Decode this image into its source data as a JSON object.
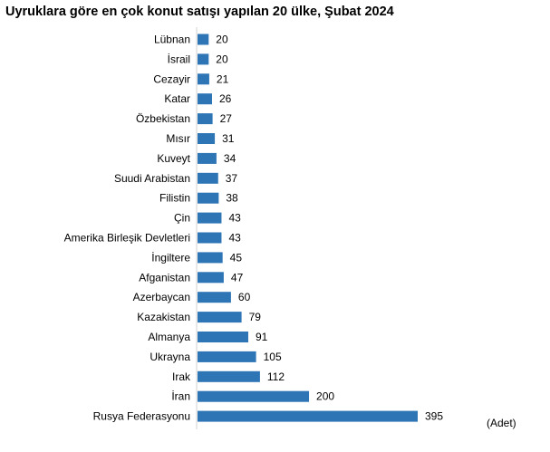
{
  "chart_data": {
    "type": "bar",
    "orientation": "horizontal",
    "title": "Uyruklara göre en çok konut satışı yapılan 20 ülke, Şubat 2024",
    "unit_label": "(Adet)",
    "categories": [
      "Lübnan",
      "İsrail",
      "Cezayir",
      "Katar",
      "Özbekistan",
      "Mısır",
      "Kuveyt",
      "Suudi Arabistan",
      "Filistin",
      "Çin",
      "Amerika Birleşik Devletleri",
      "İngiltere",
      "Afganistan",
      "Azerbaycan",
      "Kazakistan",
      "Almanya",
      "Ukrayna",
      "Irak",
      "İran",
      "Rusya Federasyonu"
    ],
    "values": [
      20,
      20,
      21,
      26,
      27,
      31,
      34,
      37,
      38,
      43,
      43,
      45,
      47,
      60,
      79,
      91,
      105,
      112,
      200,
      395
    ],
    "bar_color": "#2e75b6",
    "xlim": [
      0,
      395
    ],
    "grid": false,
    "legend": "none"
  }
}
